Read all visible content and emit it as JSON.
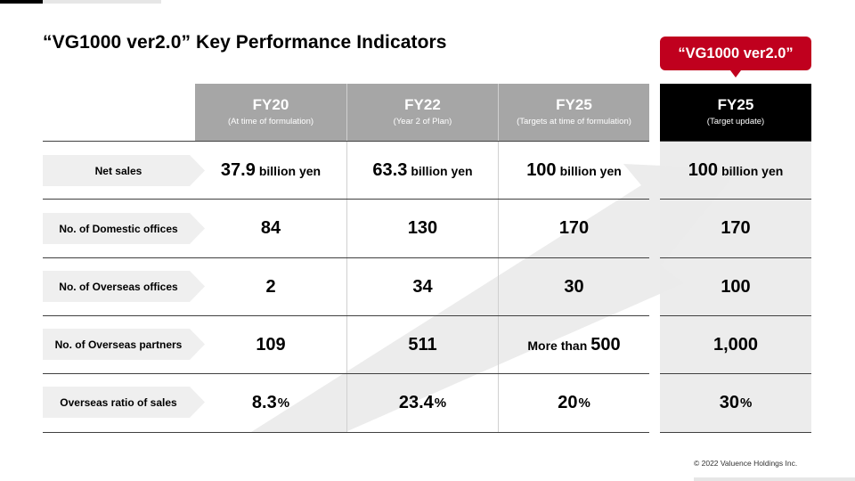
{
  "title": "“VG1000 ver2.0” Key Performance Indicators",
  "callout": "“VG1000 ver2.0”",
  "columns": [
    {
      "fy": "FY20",
      "sub": "(At time of formulation)"
    },
    {
      "fy": "FY22",
      "sub": "(Year 2 of Plan)"
    },
    {
      "fy": "FY25",
      "sub": "(Targets at time of formulation)"
    },
    {
      "fy": "FY25",
      "sub": "(Target update)"
    }
  ],
  "rows": [
    {
      "label": "Net sales",
      "c0": {
        "num": "37.9",
        "unit": "billion yen"
      },
      "c1": {
        "num": "63.3",
        "unit": "billion yen"
      },
      "c2": {
        "num": "100",
        "unit": "billion yen"
      },
      "c3": {
        "num": "100",
        "unit": "billion yen"
      }
    },
    {
      "label": "No. of Domestic offices",
      "c0": {
        "num": "84"
      },
      "c1": {
        "num": "130"
      },
      "c2": {
        "num": "170"
      },
      "c3": {
        "num": "170"
      }
    },
    {
      "label": "No. of Overseas offices",
      "c0": {
        "num": "2"
      },
      "c1": {
        "num": "34"
      },
      "c2": {
        "num": "30"
      },
      "c3": {
        "num": "100"
      }
    },
    {
      "label": "No. of Overseas partners",
      "c0": {
        "num": "109"
      },
      "c1": {
        "num": "511"
      },
      "c2": {
        "pre": "More than",
        "num": "500"
      },
      "c3": {
        "num": "1,000"
      }
    },
    {
      "label": "Overseas ratio of sales",
      "c0": {
        "num": "8.3",
        "pct": "%"
      },
      "c1": {
        "num": "23.4",
        "pct": "%"
      },
      "c2": {
        "num": "20",
        "pct": "%"
      },
      "c3": {
        "num": "30",
        "pct": "%"
      }
    }
  ],
  "copyright": "© 2022 Valuence Holdings Inc.",
  "colors": {
    "accent": "#c0001e",
    "header_gray": "#a6a6a6",
    "header_black": "#000000",
    "label_bg": "#efefef",
    "arrow": "#ebebeb"
  }
}
